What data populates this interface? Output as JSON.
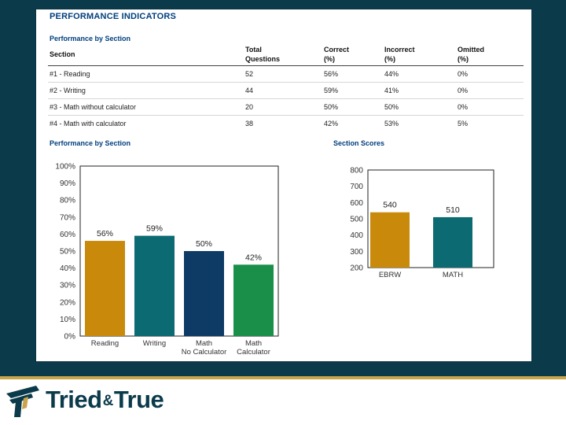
{
  "header": {
    "title": "PERFORMANCE INDICATORS"
  },
  "table": {
    "heading": "Performance by Section",
    "columns": [
      {
        "line1": "Section",
        "line2": ""
      },
      {
        "line1": "Total",
        "line2": "Questions"
      },
      {
        "line1": "Correct",
        "line2": "(%)"
      },
      {
        "line1": "Incorrect",
        "line2": "(%)"
      },
      {
        "line1": "Omitted",
        "line2": "(%)"
      }
    ],
    "rows": [
      {
        "section": "#1 - Reading",
        "total": "52",
        "correct": "56%",
        "incorrect": "44%",
        "omitted": "0%"
      },
      {
        "section": "#2 - Writing",
        "total": "44",
        "correct": "59%",
        "incorrect": "41%",
        "omitted": "0%"
      },
      {
        "section": "#3 - Math without calculator",
        "total": "20",
        "correct": "50%",
        "incorrect": "50%",
        "omitted": "0%"
      },
      {
        "section": "#4 - Math with calculator",
        "total": "38",
        "correct": "42%",
        "incorrect": "53%",
        "omitted": "5%"
      }
    ]
  },
  "chart_data": [
    {
      "type": "bar",
      "title": "Performance by Section",
      "categories": [
        [
          "Reading"
        ],
        [
          "Writing"
        ],
        [
          "Math",
          "No Calculator"
        ],
        [
          "Math",
          "Calculator"
        ]
      ],
      "values": [
        56,
        59,
        50,
        42
      ],
      "labels": [
        "56%",
        "59%",
        "50%",
        "42%"
      ],
      "colors": [
        "#c98a0c",
        "#0b6a72",
        "#0d3b66",
        "#1a8f4a"
      ],
      "yticks": [
        "0%",
        "10%",
        "20%",
        "30%",
        "40%",
        "50%",
        "60%",
        "70%",
        "80%",
        "90%",
        "100%"
      ],
      "ylim": [
        0,
        100
      ]
    },
    {
      "type": "bar",
      "title": "Section Scores",
      "categories": [
        [
          "EBRW"
        ],
        [
          "MATH"
        ]
      ],
      "values": [
        540,
        510
      ],
      "labels": [
        "540",
        "510"
      ],
      "colors": [
        "#c98a0c",
        "#0b6a72"
      ],
      "yticks": [
        "200",
        "300",
        "400",
        "500",
        "600",
        "700",
        "800"
      ],
      "ylim": [
        200,
        800
      ]
    }
  ],
  "brand": {
    "name_part1": "Tried",
    "amp": "&",
    "name_part2": "True",
    "color": "#0b3a4b",
    "accent": "#c9a44c"
  }
}
